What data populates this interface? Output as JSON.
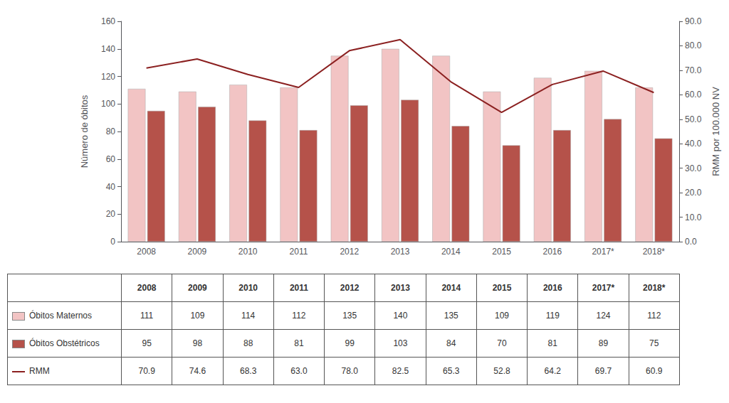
{
  "chart_data": {
    "type": "bar",
    "categories": [
      "2008",
      "2009",
      "2010",
      "2011",
      "2012",
      "2013",
      "2014",
      "2015",
      "2016",
      "2017*",
      "2018*"
    ],
    "series": [
      {
        "name": "Óbitos Maternos",
        "type": "bar",
        "color": "#f2c4c4",
        "values": [
          111,
          109,
          114,
          112,
          135,
          140,
          135,
          109,
          119,
          124,
          112
        ]
      },
      {
        "name": "Óbitos Obstétricos",
        "type": "bar",
        "color": "#b5524a",
        "values": [
          95,
          98,
          88,
          81,
          99,
          103,
          84,
          70,
          81,
          89,
          75
        ]
      },
      {
        "name": "RMM",
        "type": "line",
        "color": "#8b2020",
        "axis": "y2",
        "marker": "none",
        "values": [
          70.9,
          74.6,
          68.3,
          63.0,
          78.0,
          82.5,
          65.3,
          52.8,
          64.2,
          69.7,
          60.9
        ],
        "value_labels": [
          "70.9",
          "74.6",
          "68.3",
          "63.0",
          "78.0",
          "82.5",
          "65.3",
          "52.8",
          "64.2",
          "69.7",
          "60.9"
        ]
      }
    ],
    "ylabel": "Número de óbitos",
    "y2label": "RMM por 100.000 NV",
    "ylim": [
      0,
      160
    ],
    "yticks": [
      0,
      20,
      40,
      60,
      80,
      100,
      120,
      140,
      160
    ],
    "y2lim": [
      0,
      90
    ],
    "y2ticks": [
      {
        "value": 0,
        "label": "0.0"
      },
      {
        "value": 10,
        "label": "10.0"
      },
      {
        "value": 20,
        "label": "20.0"
      },
      {
        "value": 30,
        "label": "30.0"
      },
      {
        "value": 40,
        "label": "40.0"
      },
      {
        "value": 50,
        "label": "50.0"
      },
      {
        "value": 60,
        "label": "60.0"
      },
      {
        "value": 70,
        "label": "70.0"
      },
      {
        "value": 80,
        "label": "80.0"
      },
      {
        "value": 90,
        "label": "90.0"
      }
    ],
    "grid": false
  }
}
